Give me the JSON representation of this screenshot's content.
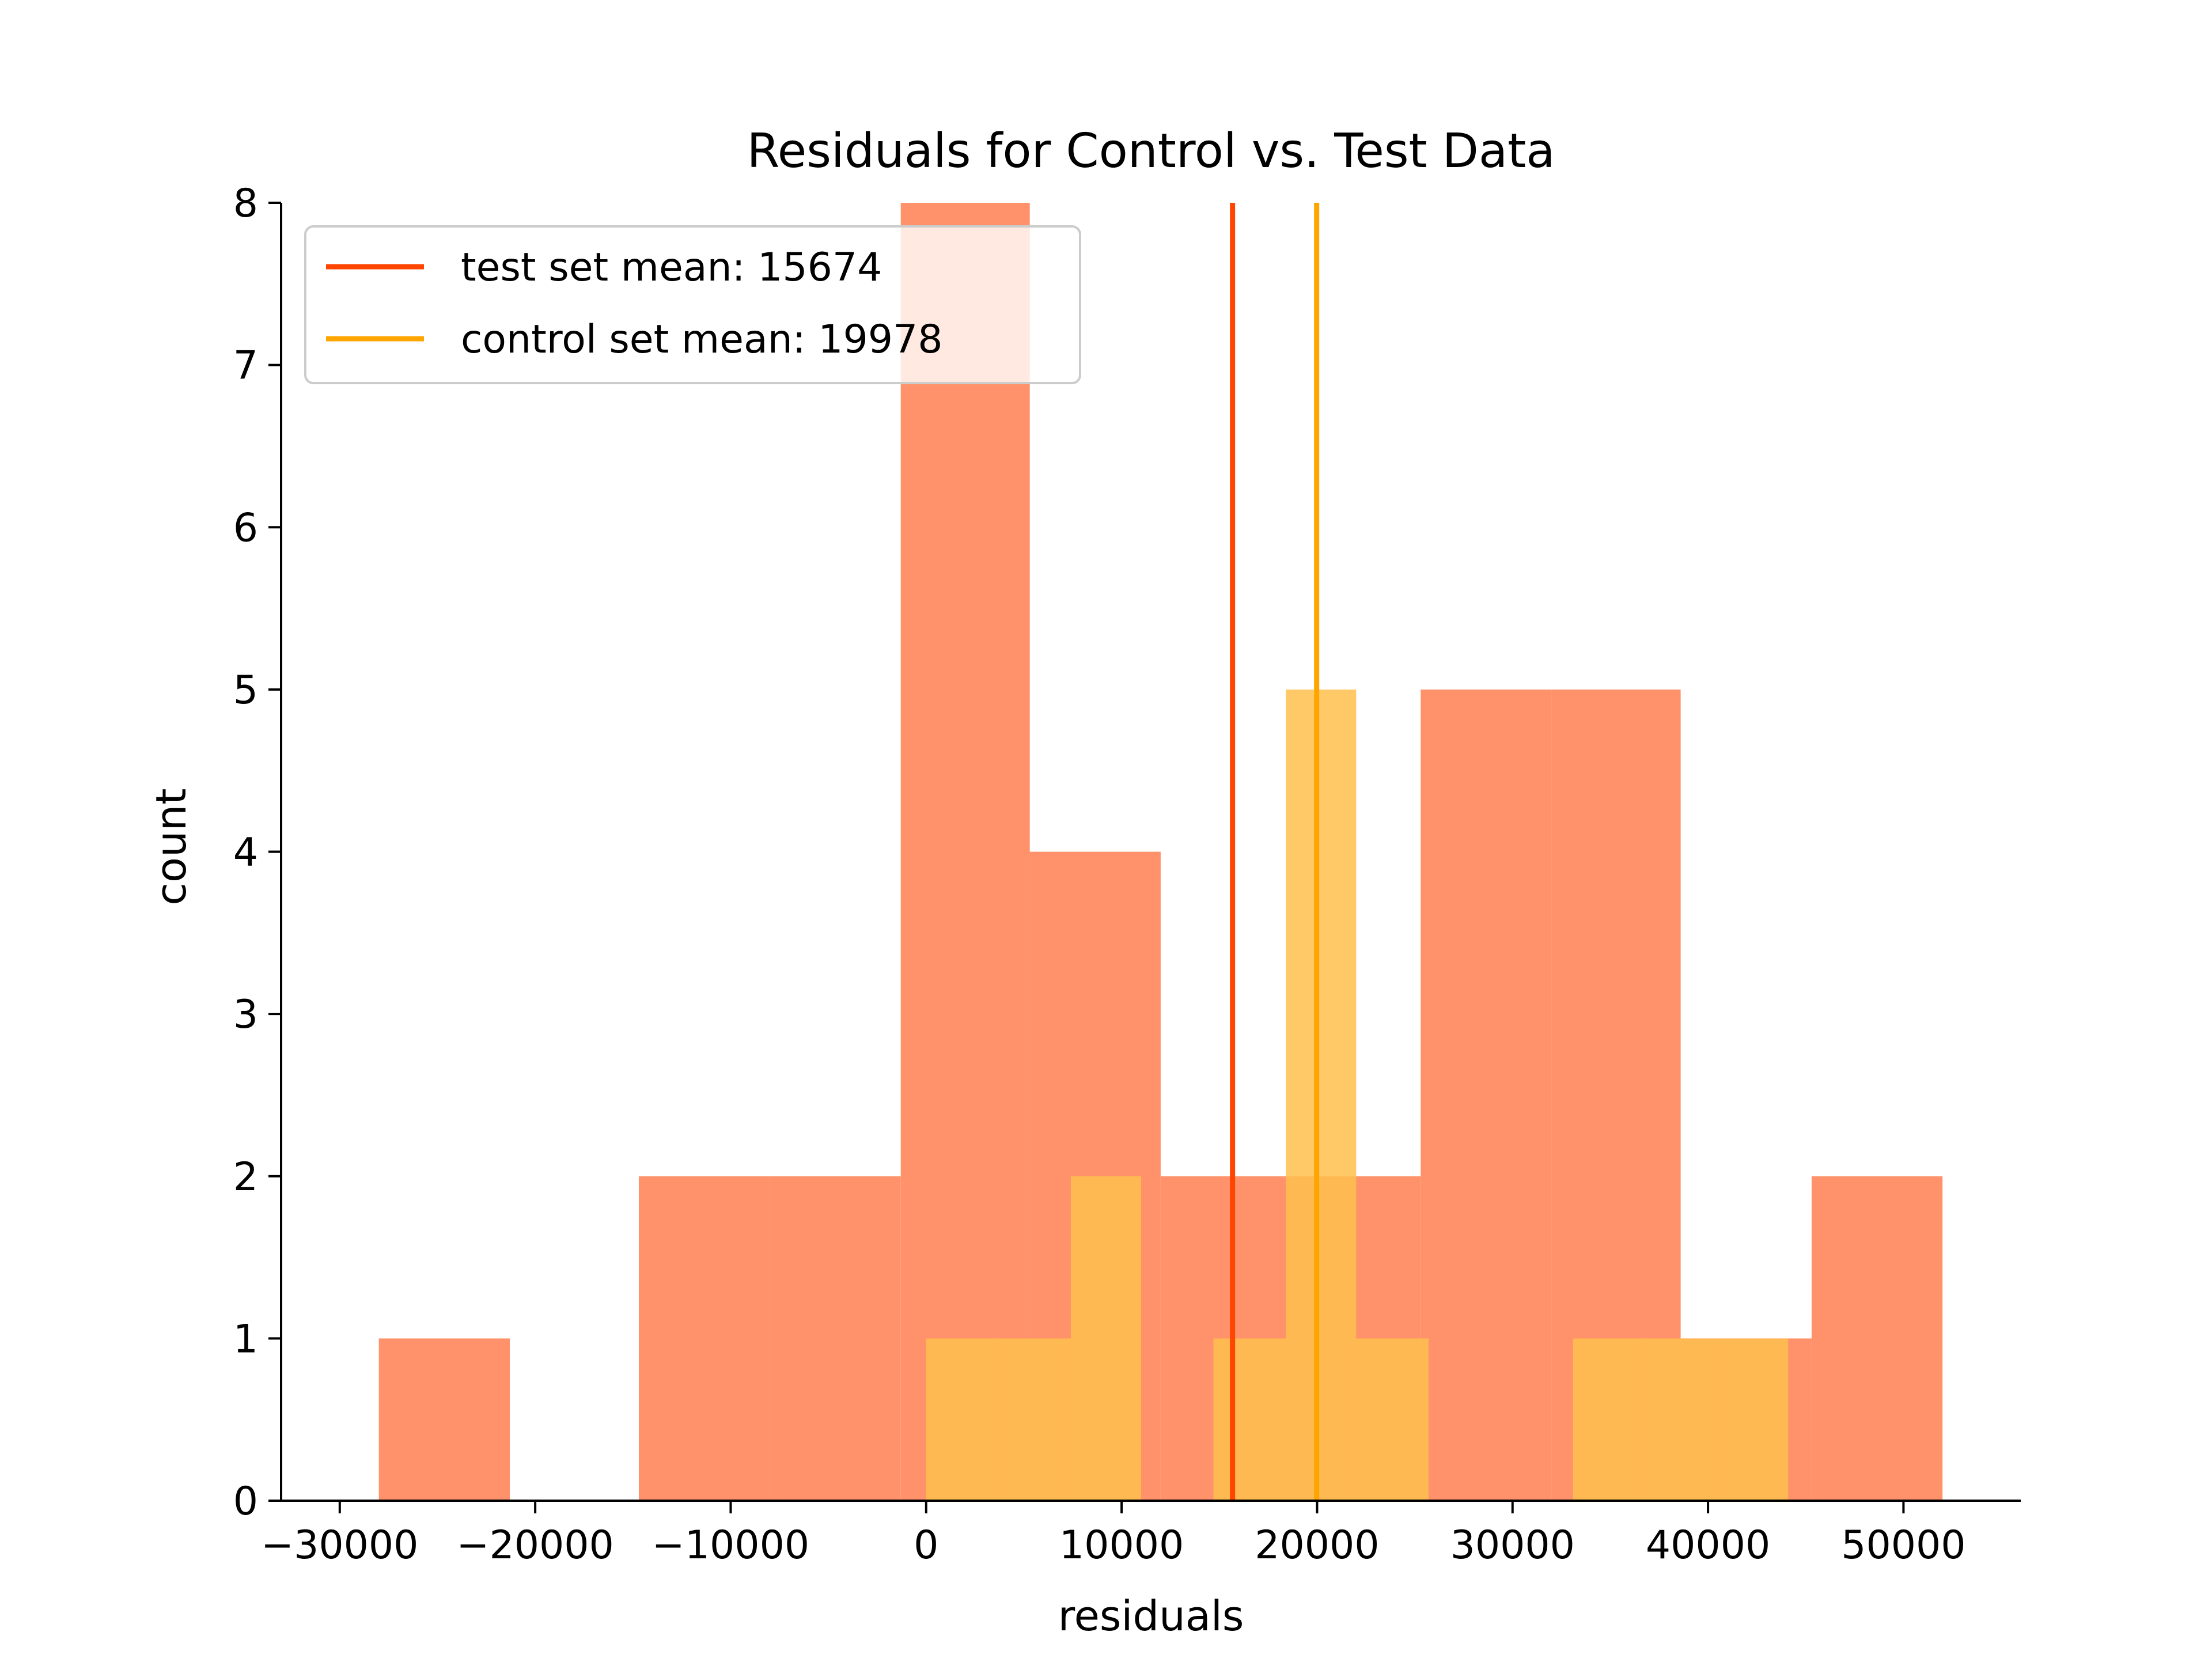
{
  "chart_data": {
    "type": "bar",
    "title": "Residuals for Control vs. Test Data",
    "xlabel": "residuals",
    "ylabel": "count",
    "xlim": [
      -33000,
      56000
    ],
    "ylim": [
      0,
      8
    ],
    "xticks": [
      -30000,
      -20000,
      -10000,
      0,
      10000,
      20000,
      30000,
      40000,
      50000
    ],
    "xtick_labels": [
      "−30000",
      "−20000",
      "−10000",
      "0",
      "10000",
      "20000",
      "30000",
      "40000",
      "50000"
    ],
    "yticks": [
      0,
      1,
      2,
      3,
      4,
      5,
      6,
      7,
      8
    ],
    "ytick_labels": [
      "0",
      "1",
      "2",
      "3",
      "4",
      "5",
      "6",
      "7",
      "8"
    ],
    "grid": false,
    "legend_position": "top-left",
    "series": [
      {
        "name": "test",
        "kind": "histogram",
        "color": "#ff7f50",
        "bins": [
          {
            "from": -28000,
            "to": -21300,
            "count": 1
          },
          {
            "from": -21300,
            "to": -14700,
            "count": 0
          },
          {
            "from": -14700,
            "to": -8000,
            "count": 2
          },
          {
            "from": -8000,
            "to": -1300,
            "count": 2
          },
          {
            "from": -1300,
            "to": 5300,
            "count": 8
          },
          {
            "from": 5300,
            "to": 12000,
            "count": 4
          },
          {
            "from": 12000,
            "to": 18600,
            "count": 2
          },
          {
            "from": 18600,
            "to": 25300,
            "count": 2
          },
          {
            "from": 25300,
            "to": 32000,
            "count": 5
          },
          {
            "from": 32000,
            "to": 38600,
            "count": 5
          },
          {
            "from": 38600,
            "to": 45300,
            "count": 1
          },
          {
            "from": 45300,
            "to": 52000,
            "count": 2
          }
        ]
      },
      {
        "name": "control",
        "kind": "histogram",
        "color": "#ffc04d",
        "bins": [
          {
            "from": 0,
            "to": 3700,
            "count": 1
          },
          {
            "from": 3700,
            "to": 7400,
            "count": 1
          },
          {
            "from": 7400,
            "to": 11000,
            "count": 2
          },
          {
            "from": 11000,
            "to": 14700,
            "count": 0
          },
          {
            "from": 14700,
            "to": 18400,
            "count": 1
          },
          {
            "from": 18400,
            "to": 22000,
            "count": 5
          },
          {
            "from": 22000,
            "to": 25700,
            "count": 1
          },
          {
            "from": 25700,
            "to": 29400,
            "count": 0
          },
          {
            "from": 29400,
            "to": 33100,
            "count": 0
          },
          {
            "from": 33100,
            "to": 36700,
            "count": 1
          },
          {
            "from": 36700,
            "to": 40400,
            "count": 1
          },
          {
            "from": 40400,
            "to": 44100,
            "count": 1
          }
        ]
      }
    ],
    "mean_lines": [
      {
        "label": "test set mean: 15674",
        "x": 15674,
        "color": "#ff4500"
      },
      {
        "label": "control set mean: 19978",
        "x": 19978,
        "color": "#ffa500"
      }
    ]
  }
}
